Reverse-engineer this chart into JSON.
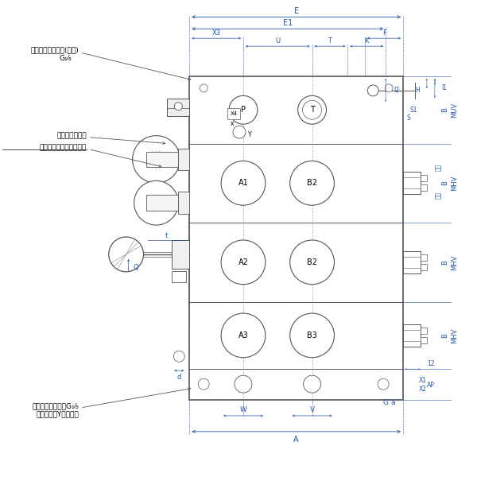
{
  "bg_color": "#ffffff",
  "line_color": "#555555",
  "dim_color": "#2255aa",
  "text_color": "#000000",
  "figsize": [
    6.0,
    6.0
  ],
  "dpi": 100,
  "labels": {
    "pilot_top": "パイロットポート(上面)",
    "pilot_top_g": "G₁⁄₈",
    "neji": "ねじ式圧力調整",
    "max_pressure": "最高圧力制限用止めねじ",
    "pilot_back": "パイロットポートG₁⁄₈",
    "pilot_back2": "（裏面）（Yポート）",
    "G_a": "G\"a\"",
    "MUV": "MUV",
    "MHV1": "MHV",
    "MHV2": "MHV",
    "MHV3": "MHV",
    "AP": "AP",
    "fubu1": "振分",
    "fubu2": "振分",
    "S1": "S1",
    "S": "S",
    "l_label": "l",
    "l1_label": "l1",
    "H_label": "H",
    "l2_label": "l2",
    "dim_E": "E",
    "dim_E1": "E1",
    "dim_F": "F",
    "dim_X3": "X3",
    "dim_U": "U",
    "dim_T": "T",
    "dim_K": "K",
    "dim_X4": "X4",
    "dim_x": "x",
    "dim_Y": "Y",
    "dim_t": "t",
    "dim_q": "Q",
    "dim_d": "d",
    "dim_W": "W",
    "dim_V": "V",
    "dim_A": "A",
    "dim_12": "12",
    "dim_X1": "X1",
    "dim_X2": "X2",
    "dim_B": "B"
  }
}
